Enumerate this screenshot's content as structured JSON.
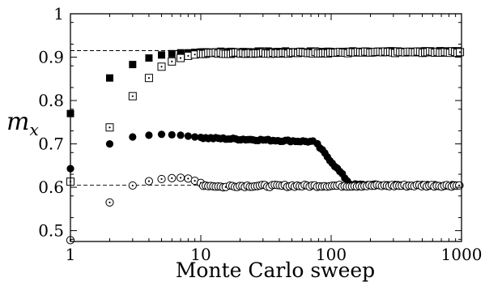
{
  "chart_data": {
    "type": "scatter",
    "title": "",
    "xlabel": "Monte Carlo sweep",
    "ylabel": {
      "main": "m",
      "sub": "x"
    },
    "xscale": "log",
    "xlim": [
      1,
      1000
    ],
    "ylim": [
      0.475,
      1.0
    ],
    "xticks": [
      1,
      10,
      100,
      1000
    ],
    "xtick_labels": [
      "1",
      "10",
      "100",
      "1000"
    ],
    "yticks": [
      0.5,
      0.6,
      0.7,
      0.8,
      0.9,
      1.0
    ],
    "ytick_labels": [
      "0.5",
      "0.6",
      "0.7",
      "0.8",
      "0.9",
      "1"
    ],
    "grid": false,
    "legend": "none",
    "reference_lines": [
      {
        "y": 0.915,
        "style": "dashed",
        "x_to": 10
      },
      {
        "y": 0.605,
        "style": "dashed",
        "x_to": 10
      }
    ],
    "series": [
      {
        "marker": "filled-square",
        "color": "#000000",
        "points": [
          [
            1,
            0.77
          ],
          [
            2,
            0.852
          ],
          [
            3,
            0.883
          ],
          [
            4,
            0.898
          ],
          [
            5,
            0.905
          ],
          [
            6,
            0.908
          ],
          [
            7,
            0.91
          ],
          [
            8,
            0.91
          ],
          [
            9,
            0.911
          ],
          [
            10,
            0.912
          ]
        ],
        "tail": {
          "x_from": 10,
          "x_to": 1000,
          "y_start": 0.912,
          "y_end": 0.913,
          "noise": 0.004
        }
      },
      {
        "marker": "dotted-open-square",
        "color": "#000000",
        "points": [
          [
            1,
            0.613
          ],
          [
            2,
            0.738
          ],
          [
            3,
            0.81
          ],
          [
            4,
            0.852
          ],
          [
            5,
            0.878
          ],
          [
            6,
            0.89
          ],
          [
            7,
            0.898
          ],
          [
            8,
            0.903
          ],
          [
            9,
            0.906
          ],
          [
            10,
            0.908
          ]
        ],
        "tail": {
          "x_from": 10,
          "x_to": 1000,
          "y_start": 0.909,
          "y_end": 0.912,
          "noise": 0.004
        }
      },
      {
        "marker": "filled-circle",
        "color": "#000000",
        "points": [
          [
            1,
            0.643
          ],
          [
            2,
            0.7
          ],
          [
            3,
            0.716
          ],
          [
            4,
            0.72
          ],
          [
            5,
            0.722
          ],
          [
            6,
            0.721
          ],
          [
            7,
            0.72
          ],
          [
            8,
            0.718
          ],
          [
            9,
            0.716
          ],
          [
            10,
            0.715
          ]
        ],
        "tail_segments": [
          {
            "x_from": 10,
            "x_to": 75,
            "y_start": 0.714,
            "y_end": 0.705,
            "noise": 0.004
          },
          {
            "x_from": 75,
            "x_to": 140,
            "y_start": 0.705,
            "y_end": 0.607,
            "noise": 0.005
          },
          {
            "x_from": 140,
            "x_to": 1000,
            "y_start": 0.606,
            "y_end": 0.604,
            "noise": 0.004
          }
        ]
      },
      {
        "marker": "open-circle",
        "color": "#000000",
        "points": [
          [
            1,
            0.478
          ],
          [
            2,
            0.565
          ],
          [
            3,
            0.604
          ],
          [
            4,
            0.614
          ],
          [
            5,
            0.619
          ],
          [
            6,
            0.621
          ],
          [
            7,
            0.622
          ],
          [
            8,
            0.62
          ],
          [
            9,
            0.615
          ],
          [
            10,
            0.61
          ]
        ],
        "tail_segments": [
          {
            "x_from": 10,
            "x_to": 16,
            "y_start": 0.605,
            "y_end": 0.6,
            "noise": 0.003
          },
          {
            "x_from": 16,
            "x_to": 1000,
            "y_start": 0.603,
            "y_end": 0.604,
            "noise": 0.005
          }
        ]
      }
    ]
  }
}
